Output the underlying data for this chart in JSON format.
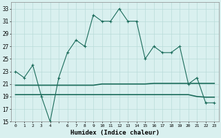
{
  "x": [
    0,
    1,
    2,
    3,
    4,
    5,
    6,
    7,
    8,
    9,
    10,
    11,
    12,
    13,
    14,
    15,
    16,
    17,
    18,
    19,
    20,
    21,
    22,
    23
  ],
  "y_humidex": [
    23,
    22,
    24,
    19,
    15,
    22,
    26,
    28,
    27,
    32,
    31,
    31,
    33,
    31,
    31,
    25,
    27,
    26,
    26,
    27,
    21,
    22,
    18,
    18
  ],
  "y_line2": [
    20.8,
    20.8,
    20.8,
    20.8,
    20.8,
    20.8,
    20.8,
    20.8,
    20.8,
    20.8,
    21.0,
    21.0,
    21.0,
    21.0,
    21.0,
    21.0,
    21.1,
    21.1,
    21.1,
    21.1,
    21.1,
    21.1,
    21.1,
    21.1
  ],
  "y_line3": [
    19.3,
    19.3,
    19.3,
    19.3,
    19.3,
    19.3,
    19.3,
    19.3,
    19.3,
    19.3,
    19.3,
    19.3,
    19.3,
    19.3,
    19.3,
    19.3,
    19.3,
    19.3,
    19.3,
    19.3,
    19.3,
    19.0,
    18.9,
    18.9
  ],
  "line_color": "#1a6b5a",
  "bg_color": "#d9f0ef",
  "grid_color": "#b8dbd9",
  "xlabel": "Humidex (Indice chaleur)",
  "ylim": [
    15,
    34
  ],
  "yticks": [
    15,
    17,
    19,
    21,
    23,
    25,
    27,
    29,
    31,
    33
  ],
  "xticks": [
    0,
    1,
    2,
    3,
    4,
    5,
    6,
    7,
    8,
    9,
    10,
    11,
    12,
    13,
    14,
    15,
    16,
    17,
    18,
    19,
    20,
    21,
    22,
    23
  ],
  "xtick_labels": [
    "0",
    "1",
    "2",
    "3",
    "4",
    "",
    "6",
    "7",
    "8",
    "9",
    "10",
    "11",
    "12",
    "13",
    "14",
    "15",
    "16",
    "17",
    "18",
    "19",
    "20",
    "21",
    "22",
    "23"
  ]
}
